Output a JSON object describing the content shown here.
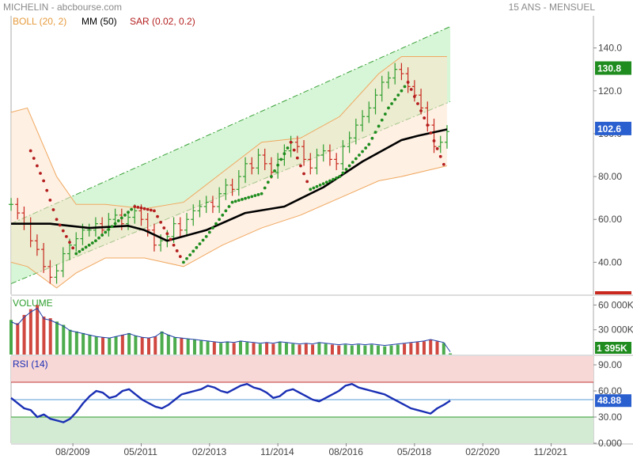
{
  "header": {
    "title": "MICHELIN - abcbourse.com",
    "period": "15 ANS - MENSUEL"
  },
  "legend": {
    "boll": "BOLL (20, 2)",
    "mm": "MM (50)",
    "sar": "SAR (0.02, 0.2)"
  },
  "colors": {
    "candle_up": "#2e9e2e",
    "candle_down": "#c8281e",
    "boll_fill": "#fde3cc",
    "boll_line": "#f0a860",
    "channel_fill": "#c9f3c9",
    "channel_line": "#3aa03a",
    "mm_line": "#000000",
    "sar_up": "#1e8c1e",
    "sar_down": "#b41e1e",
    "volume_line": "#1f3fa8",
    "rsi_line": "#1a2fb4",
    "badge_green": "#1e8c1e",
    "badge_blue": "#2a5fcf"
  },
  "price_panel": {
    "y_ticks": [
      "140.0",
      "120.0",
      "100.0",
      "80.00",
      "60.00",
      "40.00"
    ],
    "badge_high": "130.8",
    "badge_last": "102.6"
  },
  "volume_panel": {
    "title": "VOLUME",
    "y_ticks": [
      "60 000K",
      "30 000K"
    ],
    "badge_last": "1 395K"
  },
  "rsi_panel": {
    "title": "RSI (14)",
    "y_ticks": [
      "90.00",
      "60.00",
      "30.00",
      "0.000"
    ],
    "badge_last": "48.88"
  },
  "x_axis": {
    "labels": [
      "08/2009",
      "05/2011",
      "02/2013",
      "11/2014",
      "08/2016",
      "05/2018",
      "02/2020",
      "11/2021"
    ]
  },
  "chart_data": [
    {
      "type": "line",
      "title": "MICHELIN - abcbourse.com",
      "subtitle": "15 ANS - MENSUEL",
      "x_range": [
        "2008-01",
        "2022-12"
      ],
      "ylim": [
        25,
        155
      ],
      "grid": false,
      "series": [
        {
          "name": "Close",
          "x": [
            "2008-01",
            "2008-03",
            "2008-05",
            "2008-07",
            "2008-09",
            "2008-11",
            "2009-01",
            "2009-03",
            "2009-05",
            "2009-07",
            "2009-09",
            "2009-11",
            "2010-01",
            "2010-03",
            "2010-05",
            "2010-07",
            "2010-09",
            "2010-11",
            "2011-01",
            "2011-03",
            "2011-05",
            "2011-07",
            "2011-09",
            "2011-11",
            "2012-01",
            "2012-03",
            "2012-05",
            "2012-07",
            "2012-09",
            "2012-11",
            "2013-01",
            "2013-03",
            "2013-05",
            "2013-07",
            "2013-09",
            "2013-11",
            "2014-01",
            "2014-03",
            "2014-05",
            "2014-07",
            "2014-09",
            "2014-11",
            "2015-01",
            "2015-03",
            "2015-05",
            "2015-07",
            "2015-09",
            "2015-11",
            "2016-01",
            "2016-03",
            "2016-05",
            "2016-07",
            "2016-09",
            "2016-11",
            "2017-01",
            "2017-03",
            "2017-05",
            "2017-07",
            "2017-09",
            "2017-11",
            "2018-01",
            "2018-03",
            "2018-05",
            "2018-07",
            "2018-09",
            "2018-11",
            "2019-01",
            "2019-03"
          ],
          "values": [
            67,
            63,
            58,
            50,
            46,
            38,
            33,
            36,
            44,
            48,
            51,
            55,
            55,
            58,
            55,
            60,
            62,
            58,
            61,
            64,
            60,
            55,
            48,
            50,
            52,
            58,
            55,
            60,
            64,
            66,
            68,
            66,
            72,
            76,
            74,
            80,
            86,
            84,
            90,
            86,
            82,
            88,
            92,
            96,
            94,
            88,
            84,
            90,
            92,
            88,
            86,
            94,
            98,
            104,
            108,
            112,
            118,
            124,
            126,
            130,
            128,
            122,
            118,
            112,
            104,
            94,
            96,
            101
          ]
        },
        {
          "name": "MM (50)",
          "x": [
            "2008-01",
            "2009-01",
            "2010-01",
            "2011-01",
            "2011-06",
            "2012-01",
            "2013-01",
            "2014-01",
            "2015-01",
            "2016-01",
            "2017-01",
            "2018-01",
            "2018-06",
            "2019-03"
          ],
          "values": [
            58,
            58,
            56,
            57,
            55,
            50,
            55,
            63,
            66,
            75,
            87,
            97,
            99,
            102
          ]
        },
        {
          "name": "BOLL upper",
          "x": [
            "2008-01",
            "2008-06",
            "2009-03",
            "2009-09",
            "2010-06",
            "2011-06",
            "2012-06",
            "2013-06",
            "2014-06",
            "2015-06",
            "2016-06",
            "2017-06",
            "2018-01",
            "2019-03"
          ],
          "values": [
            110,
            112,
            80,
            67,
            67,
            65,
            68,
            82,
            96,
            98,
            108,
            128,
            136,
            136
          ]
        },
        {
          "name": "BOLL lower",
          "x": [
            "2008-01",
            "2008-06",
            "2009-03",
            "2009-09",
            "2010-06",
            "2011-06",
            "2012-06",
            "2013-06",
            "2014-06",
            "2015-06",
            "2016-06",
            "2017-06",
            "2018-01",
            "2019-03"
          ],
          "values": [
            40,
            38,
            28,
            35,
            42,
            42,
            38,
            48,
            56,
            62,
            70,
            78,
            80,
            85
          ]
        },
        {
          "name": "SAR (0.02, 0.2)",
          "x": [
            "2008-07",
            "2008-11",
            "2009-03",
            "2009-09",
            "2010-03",
            "2010-09",
            "2011-03",
            "2011-09",
            "2012-06",
            "2013-01",
            "2013-09",
            "2014-06",
            "2015-03",
            "2015-09",
            "2016-06",
            "2017-03",
            "2017-09",
            "2018-03",
            "2018-09",
            "2019-03"
          ],
          "values": [
            92,
            78,
            60,
            44,
            50,
            58,
            66,
            64,
            40,
            52,
            68,
            72,
            96,
            74,
            80,
            95,
            112,
            124,
            104,
            82
          ]
        }
      ],
      "y_ticks": [
        140,
        120,
        100,
        80,
        60,
        40
      ],
      "badges": {
        "highest": 130.8,
        "last": 102.6
      },
      "legend": [
        "BOLL (20, 2)",
        "MM (50)",
        "SAR (0.02, 0.2)"
      ]
    },
    {
      "type": "bar",
      "title": "VOLUME",
      "ylim": [
        0,
        70000
      ],
      "y_ticks": [
        60000,
        30000
      ],
      "series": [
        {
          "name": "Volume (K)",
          "values": [
            42000,
            38000,
            48000,
            55000,
            60000,
            46000,
            44000,
            40000,
            36000,
            30000,
            28000,
            26000,
            24000,
            22000,
            21000,
            20000,
            22000,
            24000,
            26000,
            23000,
            21000,
            20000,
            22000,
            28000,
            24000,
            21000,
            20000,
            19000,
            18000,
            17000,
            16000,
            15000,
            14000,
            15000,
            14000,
            16000,
            15000,
            14000,
            13000,
            14000,
            13000,
            15000,
            14000,
            13000,
            12000,
            13000,
            12000,
            14000,
            13000,
            12000,
            11000,
            12000,
            11000,
            12000,
            11000,
            12000,
            11000,
            10000,
            11000,
            12000,
            13000,
            14000,
            15000,
            16000,
            18000,
            16000,
            14000,
            1395
          ]
        }
      ],
      "badges": {
        "last": "1 395K"
      }
    },
    {
      "type": "line",
      "title": "RSI (14)",
      "ylim": [
        0,
        100
      ],
      "y_ticks": [
        90,
        60,
        30,
        0
      ],
      "bands": {
        "overbought": 70,
        "oversold": 30
      },
      "series": [
        {
          "name": "RSI",
          "values": [
            52,
            46,
            40,
            38,
            30,
            33,
            28,
            26,
            24,
            28,
            36,
            46,
            54,
            60,
            58,
            52,
            54,
            60,
            62,
            56,
            50,
            46,
            42,
            40,
            44,
            50,
            56,
            58,
            60,
            62,
            66,
            64,
            60,
            58,
            62,
            66,
            68,
            64,
            62,
            58,
            52,
            54,
            60,
            62,
            58,
            54,
            50,
            48,
            52,
            56,
            60,
            66,
            68,
            64,
            62,
            60,
            58,
            56,
            52,
            48,
            44,
            40,
            38,
            36,
            34,
            40,
            44,
            48.88
          ]
        }
      ],
      "badges": {
        "last": 48.88
      }
    }
  ]
}
